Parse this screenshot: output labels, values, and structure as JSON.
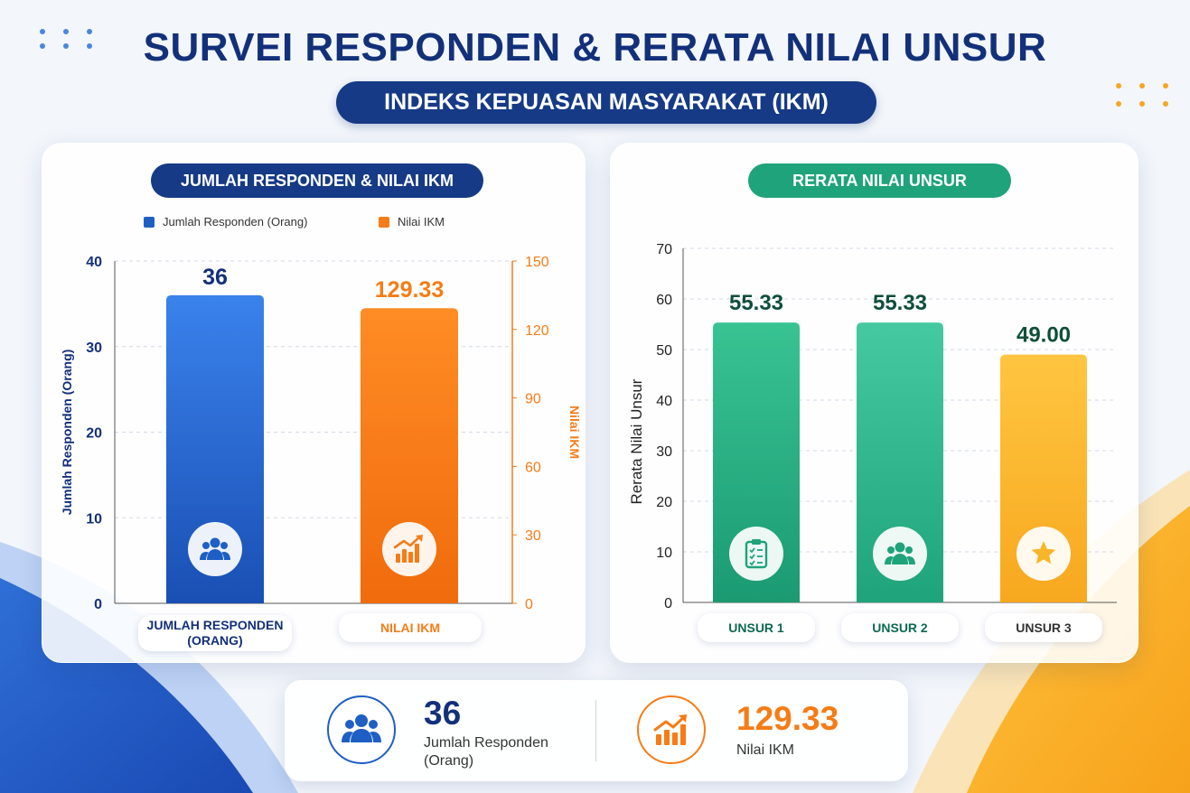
{
  "title": "SURVEI RESPONDEN & RERATA NILAI UNSUR",
  "subtitle": "INDEKS KEPUASAN MASYARAKAT (IKM)",
  "left_panel": {
    "title": "JUMLAH RESPONDEN & NILAI IKM",
    "legend": [
      {
        "label": "Jumlah Responden (Orang)",
        "color": "#1f5fc4"
      },
      {
        "label": "Nilai IKM",
        "color": "#f57c16"
      }
    ],
    "y_left_label": "Jumlah Responden (Orang)",
    "y_right_label": "Nilai IKM",
    "categories": [
      "JUMLAH RESPONDEN\n(ORANG)",
      "NILAI IKM"
    ],
    "value_labels": [
      "36",
      "129.33"
    ],
    "icons": [
      "users-icon",
      "growth-chart-icon"
    ]
  },
  "right_panel": {
    "title": "RERATA NILAI UNSUR",
    "y_label": "Rerata Nilai Unsur",
    "categories": [
      "UNSUR 1",
      "UNSUR 2",
      "UNSUR 3"
    ],
    "value_labels": [
      "55.33",
      "55.33",
      "49.00"
    ],
    "icons": [
      "clipboard-check-icon",
      "users-icon",
      "star-icon"
    ]
  },
  "summary": {
    "responden_value": "36",
    "responden_label": "Jumlah Responden (Orang)",
    "ikm_value": "129.33",
    "ikm_label": "Nilai IKM",
    "icons": [
      "users-icon",
      "growth-chart-icon"
    ]
  },
  "colors": {
    "navy": "#13307a",
    "blue": "#1f5fc4",
    "orange": "#f57c16",
    "green": "#1fa37a",
    "green_dark": "#0e6a4d",
    "yellow": "#f9b52a"
  },
  "chart_data": [
    {
      "type": "bar",
      "title": "JUMLAH RESPONDEN & NILAI IKM",
      "categories": [
        "JUMLAH RESPONDEN (ORANG)",
        "NILAI IKM"
      ],
      "series": [
        {
          "name": "Jumlah Responden (Orang)",
          "axis": "left",
          "values": [
            36,
            null
          ]
        },
        {
          "name": "Nilai IKM",
          "axis": "right",
          "values": [
            null,
            129.33
          ]
        }
      ],
      "ylabel": "Jumlah Responden (Orang)",
      "ylim": [
        0,
        40
      ],
      "yticks": [
        0,
        10,
        20,
        30,
        40
      ],
      "y2label": "Nilai IKM",
      "y2lim": [
        0,
        150
      ],
      "y2ticks": [
        0,
        30,
        60,
        90,
        120,
        150
      ],
      "legend": "top",
      "grid": true
    },
    {
      "type": "bar",
      "title": "RERATA NILAI UNSUR",
      "categories": [
        "UNSUR 1",
        "UNSUR 2",
        "UNSUR 3"
      ],
      "values": [
        55.33,
        55.33,
        49.0
      ],
      "ylabel": "Rerata Nilai Unsur",
      "ylim": [
        0,
        70
      ],
      "yticks": [
        0,
        10,
        20,
        30,
        40,
        50,
        60,
        70
      ],
      "grid": true
    }
  ]
}
